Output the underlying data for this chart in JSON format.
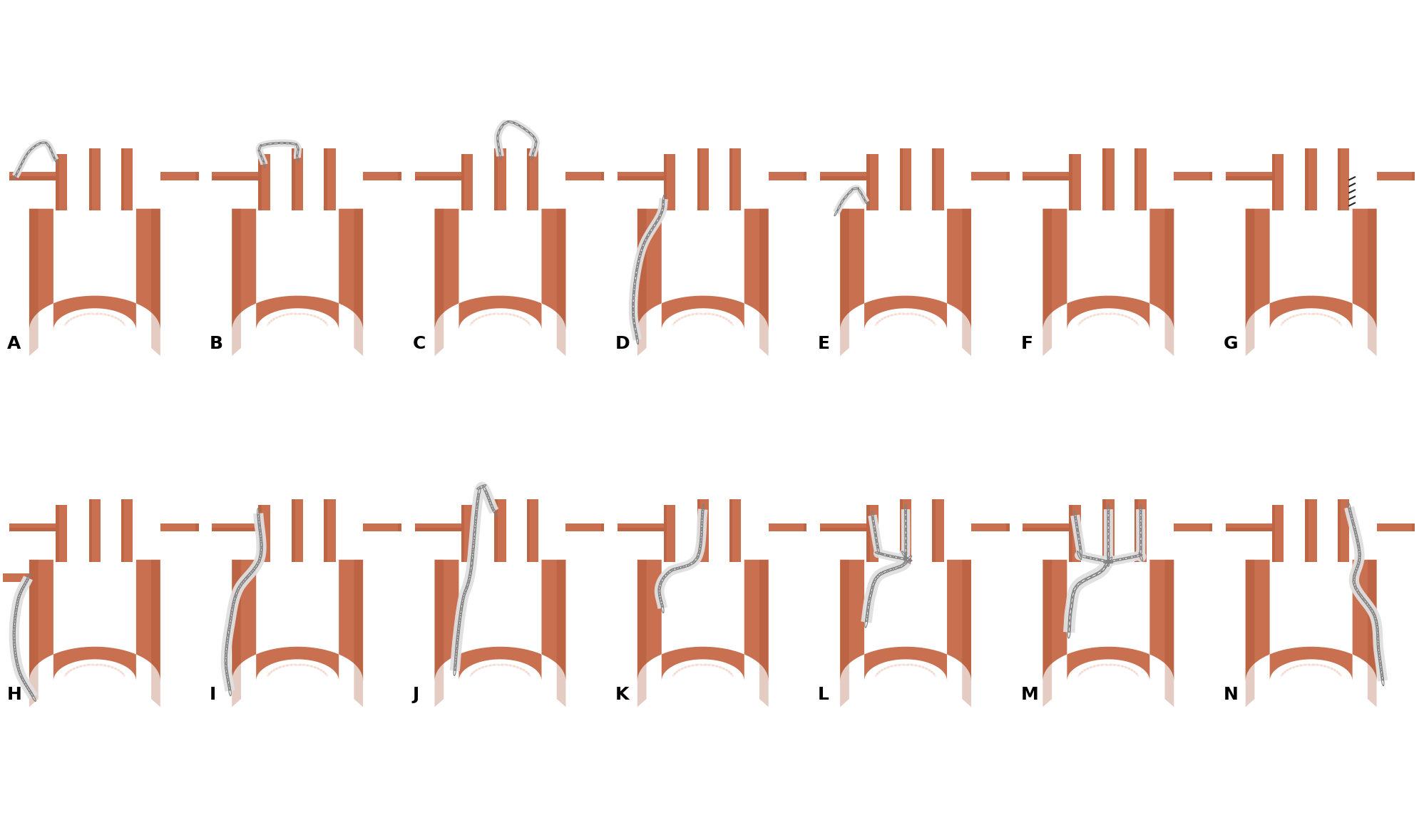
{
  "background_color": "#ffffff",
  "vessel_color": "#C87050",
  "vessel_shadow": "#A04828",
  "vessel_highlight": "#D88060",
  "graft_color": "#E0E0E0",
  "graft_outline": "#808080",
  "text_color": "#000000",
  "labels": [
    "A",
    "B",
    "C",
    "D",
    "E",
    "F",
    "G",
    "H",
    "I",
    "J",
    "K",
    "L",
    "M",
    "N"
  ],
  "label_fontsize": 18,
  "fig_width": 19.97,
  "fig_height": 11.68
}
